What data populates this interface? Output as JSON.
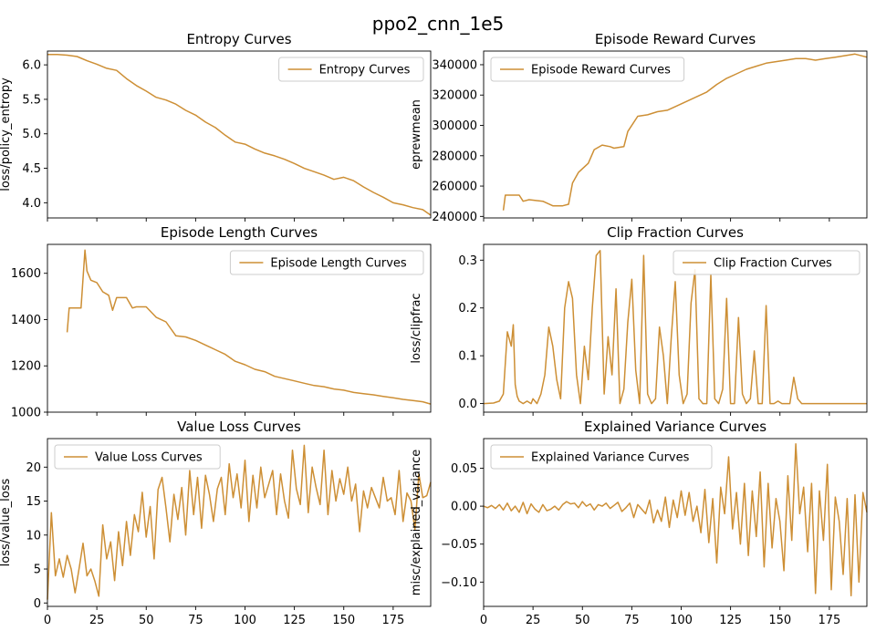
{
  "figure": {
    "title": "ppo2_cnn_1e5"
  },
  "colors": {
    "series": "#cd8f35",
    "axis": "#000000",
    "legend_border": "#cccccc"
  },
  "chart_data": [
    {
      "type": "line",
      "title": "Entropy Curves",
      "xlabel": "",
      "ylabel": "loss/policy_entropy",
      "xlim": [
        0,
        194
      ],
      "ylim": [
        3.78,
        6.2
      ],
      "xticks": [],
      "xtick_labels": [],
      "yticks": [
        4.0,
        4.5,
        5.0,
        5.5,
        6.0
      ],
      "ytick_labels": [
        "4.0",
        "4.5",
        "5.0",
        "5.5",
        "6.0"
      ],
      "legend": {
        "placement": "top-right",
        "entries": [
          "Entropy Curves"
        ]
      },
      "series": [
        {
          "name": "Entropy Curves",
          "x": [
            0,
            5,
            10,
            15,
            20,
            25,
            30,
            35,
            40,
            45,
            50,
            55,
            60,
            65,
            70,
            75,
            80,
            85,
            90,
            95,
            100,
            105,
            110,
            115,
            120,
            125,
            130,
            135,
            140,
            145,
            150,
            155,
            160,
            165,
            170,
            175,
            180,
            185,
            190,
            194
          ],
          "y": [
            6.15,
            6.15,
            6.14,
            6.12,
            6.06,
            6.01,
            5.95,
            5.92,
            5.8,
            5.7,
            5.62,
            5.53,
            5.49,
            5.43,
            5.34,
            5.27,
            5.17,
            5.09,
            4.98,
            4.88,
            4.85,
            4.78,
            4.72,
            4.68,
            4.63,
            4.57,
            4.5,
            4.45,
            4.4,
            4.34,
            4.37,
            4.32,
            4.23,
            4.15,
            4.08,
            4.0,
            3.97,
            3.93,
            3.9,
            3.82
          ]
        }
      ]
    },
    {
      "type": "line",
      "title": "Episode Reward Curves",
      "xlabel": "",
      "ylabel": "eprewmean",
      "xlim": [
        0,
        194
      ],
      "ylim": [
        239000,
        349000
      ],
      "xticks": [],
      "xtick_labels": [],
      "yticks": [
        240000,
        260000,
        280000,
        300000,
        320000,
        340000
      ],
      "ytick_labels": [
        "240000",
        "260000",
        "280000",
        "300000",
        "320000",
        "340000"
      ],
      "legend": {
        "placement": "top-left",
        "entries": [
          "Episode Reward Curves"
        ]
      },
      "series": [
        {
          "name": "Episode Reward Curves",
          "x": [
            10,
            11,
            14,
            18,
            20,
            23,
            30,
            35,
            40,
            43,
            45,
            48,
            53,
            56,
            60,
            64,
            66,
            71,
            73,
            78,
            83,
            88,
            93,
            98,
            103,
            108,
            113,
            118,
            123,
            128,
            133,
            138,
            143,
            148,
            153,
            158,
            163,
            168,
            173,
            178,
            183,
            188,
            194
          ],
          "y": [
            244000,
            254000,
            254000,
            254000,
            250000,
            251000,
            250000,
            247000,
            247000,
            248000,
            262000,
            269000,
            275000,
            284000,
            287000,
            286000,
            285000,
            286000,
            296000,
            306000,
            307000,
            309000,
            310000,
            313000,
            316000,
            319000,
            322000,
            327000,
            331000,
            334000,
            337000,
            339000,
            341000,
            342000,
            343000,
            344000,
            344000,
            343000,
            344000,
            345000,
            346000,
            347000,
            345000
          ]
        }
      ]
    },
    {
      "type": "line",
      "title": "Episode Length Curves",
      "xlabel": "",
      "ylabel": "",
      "xlim": [
        0,
        194
      ],
      "ylim": [
        1000,
        1725
      ],
      "xticks": [],
      "xtick_labels": [],
      "yticks": [
        1000,
        1200,
        1400,
        1600
      ],
      "ytick_labels": [
        "1000",
        "1200",
        "1400",
        "1600"
      ],
      "legend": {
        "placement": "top-right",
        "entries": [
          "Episode Length Curves"
        ]
      },
      "series": [
        {
          "name": "Episode Length Curves",
          "x": [
            10,
            11,
            17,
            19,
            20,
            22,
            25,
            28,
            31,
            33,
            35,
            40,
            43,
            45,
            50,
            55,
            60,
            65,
            70,
            75,
            80,
            85,
            90,
            95,
            100,
            105,
            110,
            115,
            120,
            125,
            130,
            135,
            140,
            145,
            150,
            155,
            160,
            165,
            170,
            175,
            180,
            185,
            190,
            194
          ],
          "y": [
            1345,
            1450,
            1450,
            1700,
            1610,
            1570,
            1560,
            1520,
            1505,
            1440,
            1495,
            1495,
            1450,
            1455,
            1455,
            1410,
            1390,
            1330,
            1325,
            1310,
            1290,
            1270,
            1250,
            1220,
            1205,
            1185,
            1175,
            1155,
            1145,
            1135,
            1125,
            1115,
            1110,
            1100,
            1095,
            1085,
            1080,
            1075,
            1068,
            1062,
            1055,
            1050,
            1045,
            1035
          ]
        }
      ]
    },
    {
      "type": "line",
      "title": "Clip Fraction Curves",
      "xlabel": "",
      "ylabel": "loss/clipfrac",
      "xlim": [
        0,
        194
      ],
      "ylim": [
        -0.018,
        0.333
      ],
      "xticks": [],
      "xtick_labels": [],
      "yticks": [
        0.0,
        0.1,
        0.2,
        0.3
      ],
      "ytick_labels": [
        "0.0",
        "0.1",
        "0.2",
        "0.3"
      ],
      "legend": {
        "placement": "top-right",
        "entries": [
          "Clip Fraction Curves"
        ]
      },
      "series": [
        {
          "name": "Clip Fraction Curves",
          "x": [
            0,
            5,
            8,
            10,
            12,
            14,
            15,
            16,
            17,
            18,
            20,
            22,
            24,
            25,
            27,
            29,
            31,
            33,
            35,
            37,
            39,
            41,
            43,
            45,
            47,
            49,
            51,
            53,
            55,
            57,
            59,
            61,
            63,
            65,
            67,
            69,
            71,
            73,
            75,
            77,
            79,
            81,
            83,
            85,
            87,
            89,
            91,
            93,
            95,
            97,
            99,
            101,
            103,
            105,
            107,
            109,
            111,
            113,
            115,
            117,
            119,
            121,
            123,
            125,
            127,
            129,
            131,
            133,
            135,
            137,
            139,
            141,
            143,
            145,
            147,
            149,
            151,
            153,
            155,
            157,
            159,
            161,
            163,
            165,
            167,
            169,
            171,
            173,
            175,
            177,
            179,
            181,
            183,
            185,
            187,
            189,
            191,
            194
          ],
          "y": [
            0.0,
            0.001,
            0.005,
            0.02,
            0.15,
            0.12,
            0.165,
            0.04,
            0.015,
            0.005,
            0.0,
            0.005,
            0.0,
            0.01,
            0.0,
            0.02,
            0.06,
            0.16,
            0.12,
            0.05,
            0.01,
            0.2,
            0.255,
            0.22,
            0.06,
            0.0,
            0.12,
            0.05,
            0.2,
            0.31,
            0.32,
            0.02,
            0.14,
            0.06,
            0.24,
            0.0,
            0.03,
            0.17,
            0.26,
            0.07,
            0.0,
            0.31,
            0.02,
            0.0,
            0.01,
            0.16,
            0.1,
            0.0,
            0.14,
            0.255,
            0.06,
            0.0,
            0.02,
            0.21,
            0.28,
            0.01,
            0.0,
            0.0,
            0.27,
            0.01,
            0.0,
            0.03,
            0.22,
            0.0,
            0.0,
            0.18,
            0.02,
            0.0,
            0.01,
            0.11,
            0.0,
            0.0,
            0.205,
            0.0,
            0.0,
            0.005,
            0.0,
            0.0,
            0.0,
            0.055,
            0.01,
            0.0,
            0.0,
            0.0,
            0.0,
            0.0,
            0.0,
            0.0,
            0.0,
            0.0,
            0.0,
            0.0,
            0.0,
            0.0,
            0.0,
            0.0,
            0.0,
            0.0
          ]
        }
      ]
    },
    {
      "type": "line",
      "title": "Value Loss Curves",
      "xlabel": "",
      "ylabel": "loss/value_loss",
      "xlim": [
        0,
        194
      ],
      "ylim": [
        -0.5,
        24.2
      ],
      "xticks": [
        0,
        25,
        50,
        75,
        100,
        125,
        150,
        175
      ],
      "xtick_labels": [
        "0",
        "25",
        "50",
        "75",
        "100",
        "125",
        "150",
        "175"
      ],
      "yticks": [
        0,
        5,
        10,
        15,
        20
      ],
      "ytick_labels": [
        "0",
        "5",
        "10",
        "15",
        "20"
      ],
      "legend": {
        "placement": "top-left",
        "entries": [
          "Value Loss Curves"
        ]
      },
      "series": [
        {
          "name": "Value Loss Curves",
          "x": [
            0,
            2,
            4,
            6,
            8,
            10,
            12,
            14,
            16,
            18,
            20,
            22,
            24,
            26,
            28,
            30,
            32,
            34,
            36,
            38,
            40,
            42,
            44,
            46,
            48,
            50,
            52,
            54,
            56,
            58,
            60,
            62,
            64,
            66,
            68,
            70,
            72,
            74,
            76,
            78,
            80,
            82,
            84,
            86,
            88,
            90,
            92,
            94,
            96,
            98,
            100,
            102,
            104,
            106,
            108,
            110,
            112,
            114,
            116,
            118,
            120,
            122,
            124,
            126,
            128,
            130,
            132,
            134,
            136,
            138,
            140,
            142,
            144,
            146,
            148,
            150,
            152,
            154,
            156,
            158,
            160,
            162,
            164,
            166,
            168,
            170,
            172,
            174,
            176,
            178,
            180,
            182,
            184,
            186,
            188,
            190,
            192,
            194
          ],
          "y": [
            0.5,
            13.3,
            4.0,
            6.5,
            3.8,
            7.0,
            5.0,
            1.5,
            5.0,
            8.8,
            4.0,
            5.0,
            3.2,
            1.0,
            11.5,
            6.5,
            9.0,
            3.3,
            10.5,
            5.5,
            12.0,
            7.0,
            13.0,
            10.5,
            16.3,
            9.7,
            14.2,
            6.5,
            16.7,
            18.5,
            14.0,
            9.0,
            16.0,
            12.3,
            17.0,
            10.0,
            19.5,
            13.0,
            18.5,
            11.0,
            18.8,
            16.0,
            12.0,
            16.8,
            18.5,
            13.0,
            20.5,
            15.5,
            19.0,
            14.0,
            21.0,
            12.0,
            18.8,
            14.0,
            20.0,
            15.5,
            17.5,
            19.5,
            13.0,
            19.0,
            15.0,
            12.5,
            22.5,
            16.8,
            14.5,
            23.2,
            13.3,
            20.0,
            17.0,
            14.5,
            22.5,
            13.0,
            19.5,
            15.0,
            18.3,
            16.0,
            20.0,
            15.0,
            17.5,
            10.5,
            16.5,
            14.0,
            17.0,
            15.5,
            14.0,
            18.5,
            15.0,
            15.5,
            13.0,
            19.5,
            12.0,
            16.2,
            15.0,
            10.8,
            19.0,
            15.5,
            15.8,
            17.8
          ]
        }
      ]
    },
    {
      "type": "line",
      "title": "Explained Variance Curves",
      "xlabel": "",
      "ylabel": "misc/explained_variance",
      "xlim": [
        0,
        194
      ],
      "ylim": [
        -0.132,
        0.089
      ],
      "xticks": [
        0,
        25,
        50,
        75,
        100,
        125,
        150,
        175
      ],
      "xtick_labels": [
        "0",
        "25",
        "50",
        "75",
        "100",
        "125",
        "150",
        "175"
      ],
      "yticks": [
        -0.1,
        -0.05,
        0.0,
        0.05
      ],
      "ytick_labels": [
        "−0.10",
        "−0.05",
        "0.00",
        "0.05"
      ],
      "legend": {
        "placement": "top-left",
        "entries": [
          "Explained Variance Curves"
        ]
      },
      "series": [
        {
          "name": "Explained Variance Curves",
          "x": [
            0,
            2,
            4,
            6,
            8,
            10,
            12,
            14,
            16,
            18,
            20,
            22,
            24,
            26,
            28,
            30,
            32,
            34,
            36,
            38,
            40,
            42,
            44,
            46,
            48,
            50,
            52,
            54,
            56,
            58,
            60,
            62,
            64,
            66,
            68,
            70,
            72,
            74,
            76,
            78,
            80,
            82,
            84,
            86,
            88,
            90,
            92,
            94,
            96,
            98,
            100,
            102,
            104,
            106,
            108,
            110,
            112,
            114,
            116,
            118,
            120,
            122,
            124,
            126,
            128,
            130,
            132,
            134,
            136,
            138,
            140,
            142,
            144,
            146,
            148,
            150,
            152,
            154,
            156,
            158,
            160,
            162,
            164,
            166,
            168,
            170,
            172,
            174,
            176,
            178,
            180,
            182,
            184,
            186,
            188,
            190,
            192,
            194
          ],
          "y": [
            0.0,
            -0.002,
            0.001,
            -0.003,
            0.002,
            -0.005,
            0.004,
            -0.006,
            0.0,
            -0.008,
            0.005,
            -0.01,
            0.003,
            -0.004,
            -0.008,
            0.002,
            -0.006,
            -0.004,
            0.0,
            -0.005,
            0.002,
            0.006,
            0.003,
            0.004,
            -0.002,
            0.006,
            0.0,
            0.003,
            -0.005,
            0.002,
            0.0,
            0.004,
            -0.003,
            0.001,
            0.005,
            -0.007,
            -0.002,
            0.004,
            -0.015,
            0.002,
            -0.004,
            -0.01,
            0.008,
            -0.022,
            -0.005,
            -0.02,
            0.012,
            -0.028,
            0.008,
            -0.015,
            0.02,
            -0.012,
            0.018,
            -0.02,
            0.0,
            -0.035,
            0.022,
            -0.048,
            0.01,
            -0.075,
            0.025,
            -0.01,
            0.065,
            -0.03,
            0.018,
            -0.05,
            0.03,
            -0.065,
            0.02,
            -0.04,
            0.045,
            -0.08,
            0.03,
            -0.055,
            0.01,
            -0.02,
            -0.085,
            0.04,
            -0.045,
            0.082,
            -0.01,
            0.025,
            -0.06,
            0.03,
            -0.115,
            0.02,
            -0.045,
            0.055,
            -0.11,
            0.012,
            -0.02,
            -0.09,
            0.01,
            -0.118,
            0.015,
            -0.1,
            0.018,
            -0.008
          ]
        }
      ]
    }
  ]
}
